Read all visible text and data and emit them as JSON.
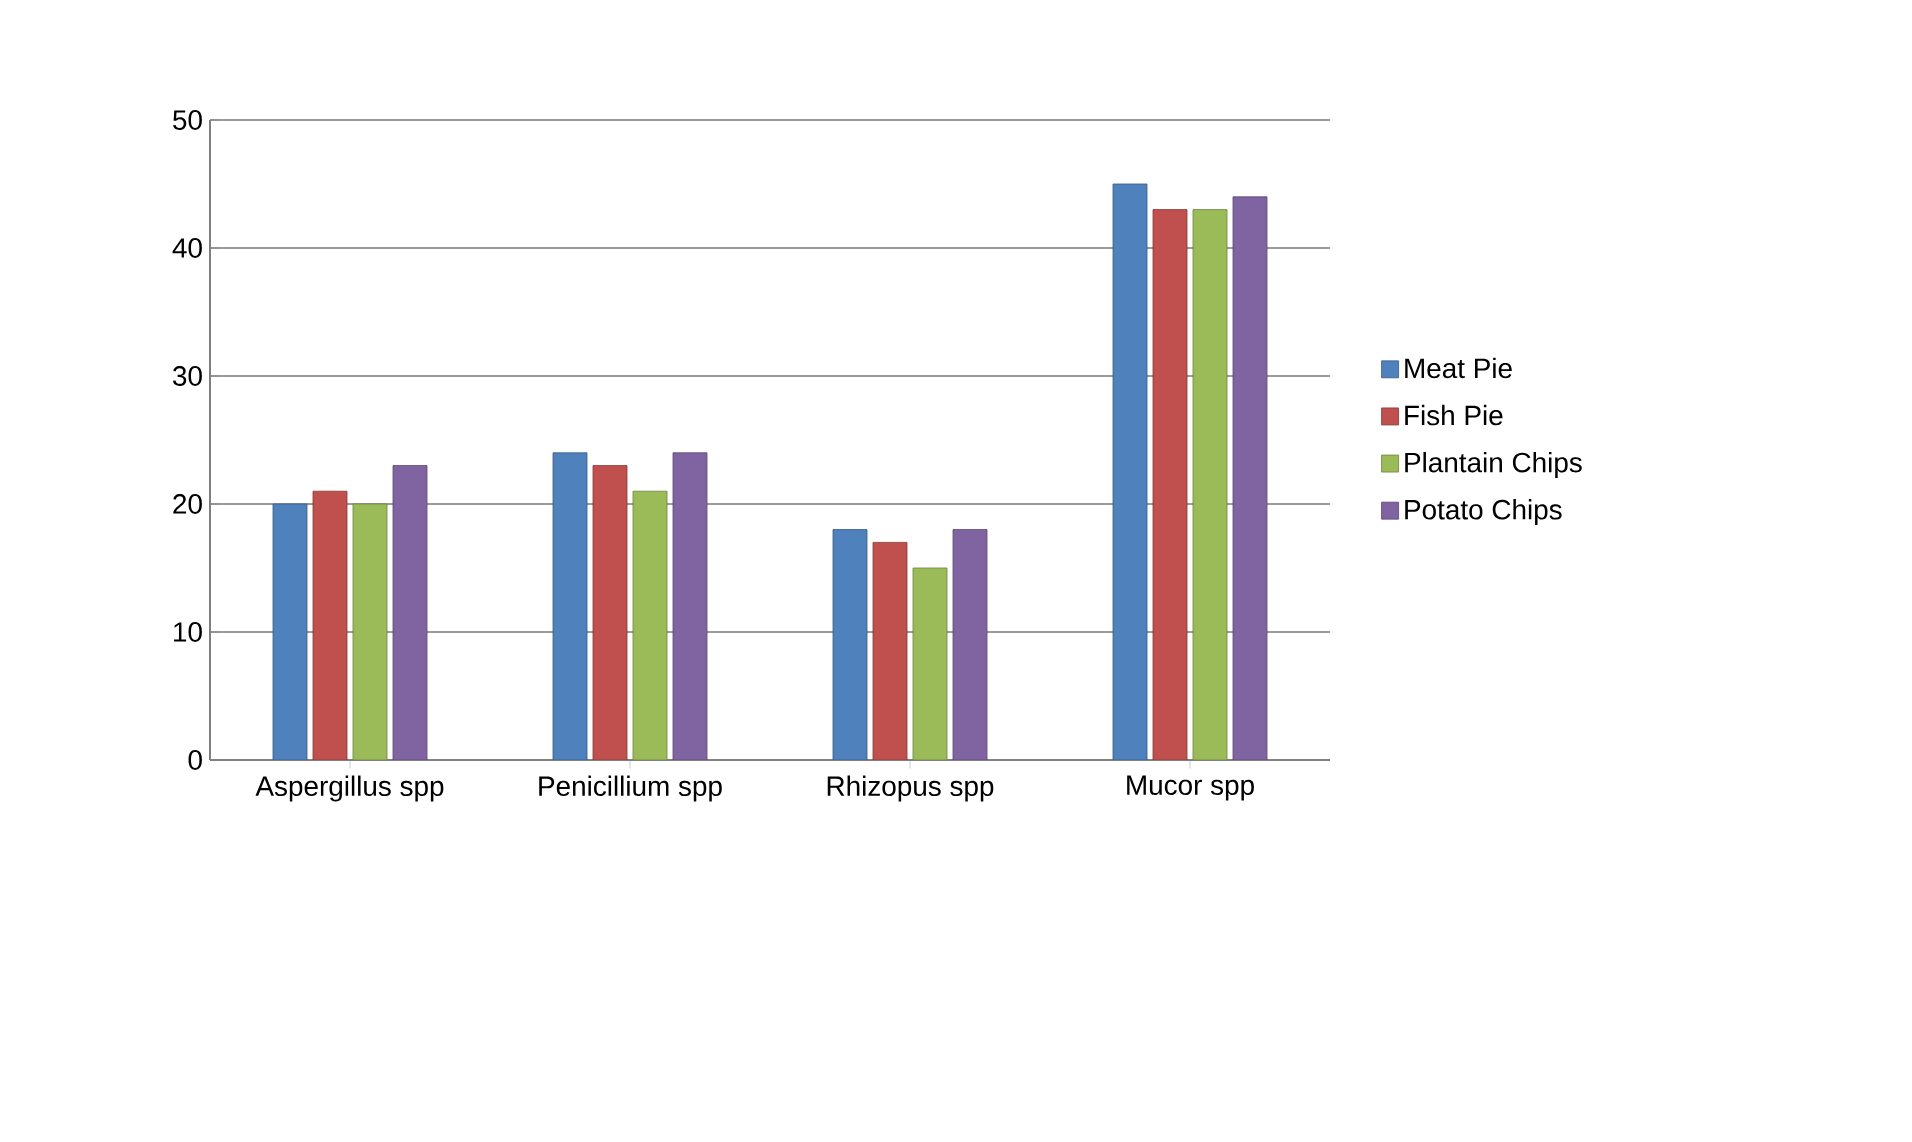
{
  "chart_data": {
    "type": "bar",
    "categories": [
      "Aspergillus spp",
      "Penicillium spp",
      "Rhizopus spp",
      "Mucor spp"
    ],
    "series": [
      {
        "name": "Meat Pie",
        "color": "#4f81bd",
        "values": [
          20,
          24,
          18,
          45
        ]
      },
      {
        "name": "Fish Pie",
        "color": "#c0504d",
        "values": [
          21,
          23,
          17,
          43
        ]
      },
      {
        "name": "Plantain Chips",
        "color": "#9bbb59",
        "values": [
          20,
          21,
          15,
          43
        ]
      },
      {
        "name": "Potato Chips",
        "color": "#8064a2",
        "values": [
          23,
          24,
          18,
          44
        ]
      }
    ],
    "ylim": [
      0,
      50
    ],
    "yticks": [
      0,
      10,
      20,
      30,
      40,
      50
    ],
    "grid": "y",
    "legend": "right"
  }
}
